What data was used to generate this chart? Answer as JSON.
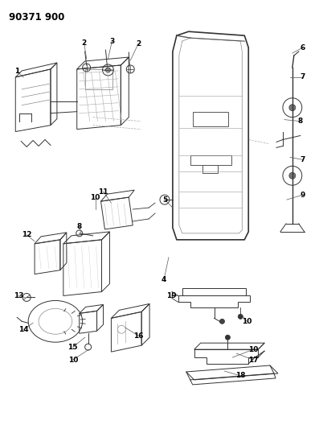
{
  "title": "90371 900",
  "bg": "#ffffff",
  "fw": 3.97,
  "fh": 5.33,
  "dpi": 100,
  "lc": "#333333",
  "tc": "#000000",
  "fs": 6.5,
  "tfs": 8.5
}
